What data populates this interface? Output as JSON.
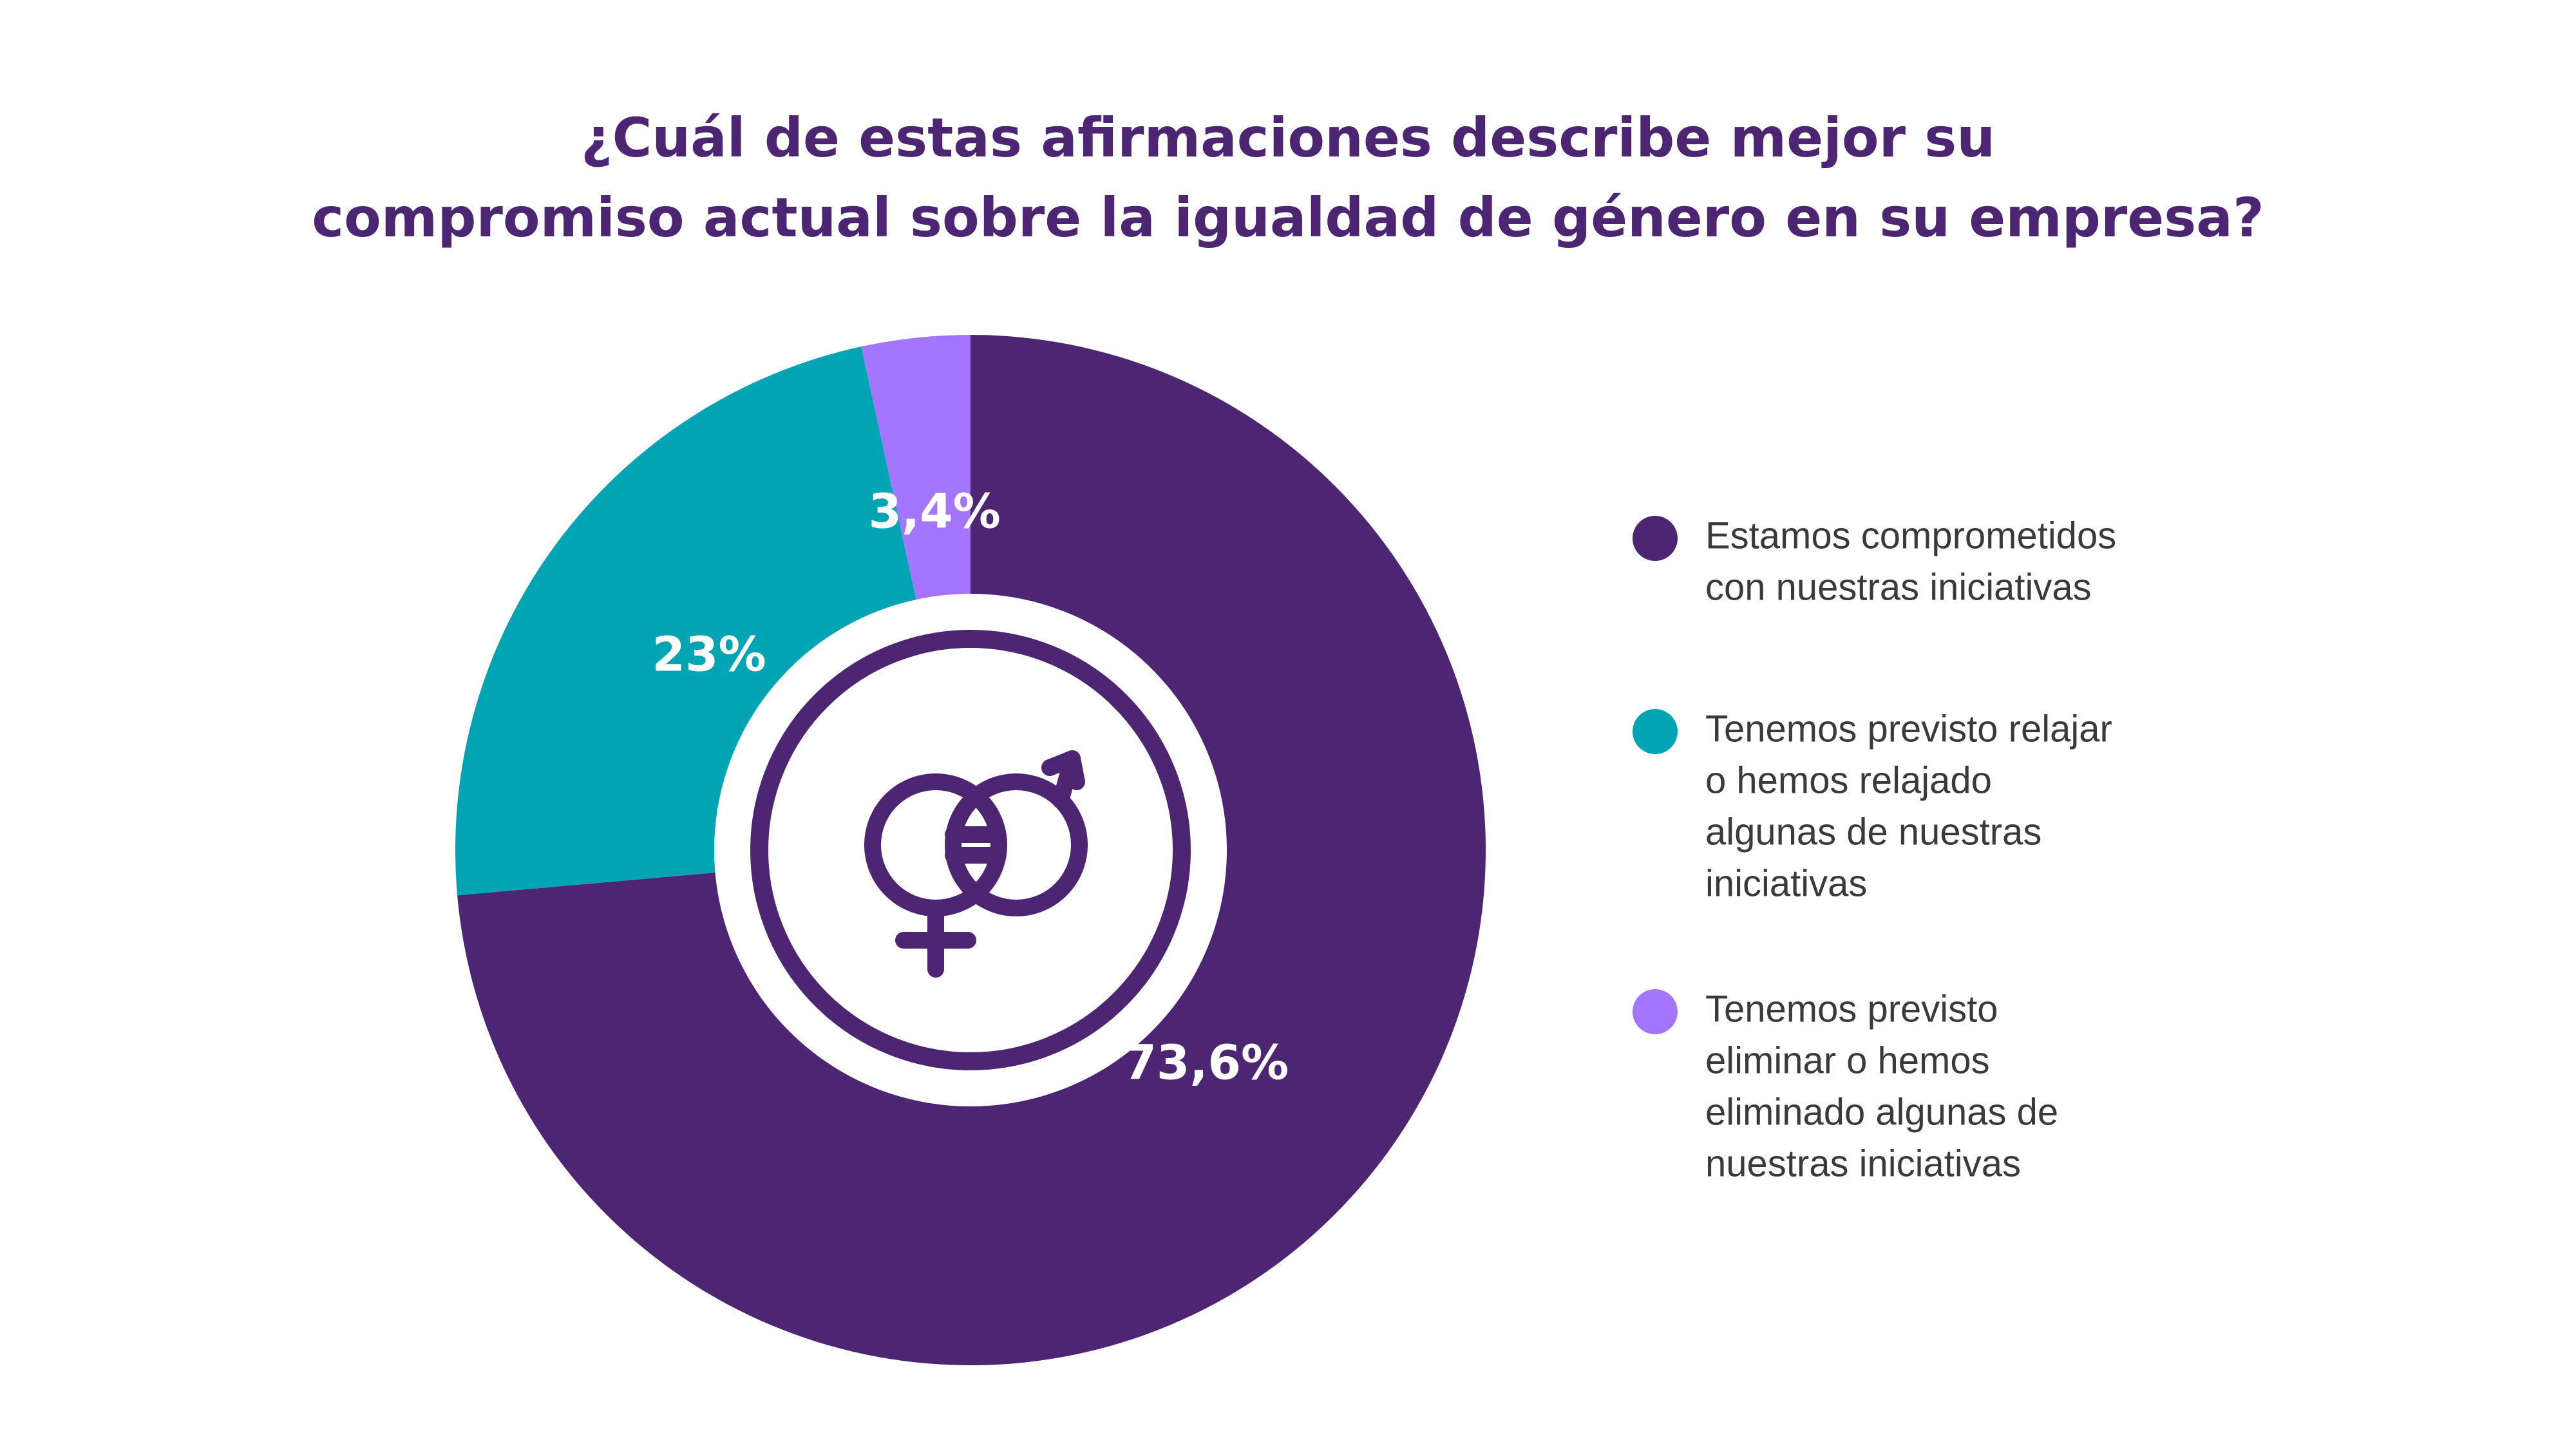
{
  "chart_data": {
    "type": "pie",
    "variant": "donut",
    "title": "¿Cuál de estas afirmaciones describe mejor su compromiso actual sobre la igualdad de género en su empresa?",
    "title_lines": [
      "¿Cuál de estas afirmaciones describe mejor su",
      "compromiso actual sobre la igualdad de género en su empresa?"
    ],
    "legend_position": "right",
    "center_icon": "gender-equality-icon",
    "slices": [
      {
        "label": "Estamos comprometidos con nuestras iniciativas",
        "legend_lines": [
          "Estamos comprometidos",
          "con nuestras iniciativas"
        ],
        "value": 73.6,
        "display": "73,6%",
        "color": "#4c2672"
      },
      {
        "label": "Tenemos previsto relajar o hemos relajado algunas de nuestras iniciativas",
        "legend_lines": [
          "Tenemos previsto relajar",
          "o hemos relajado",
          "algunas de nuestras",
          "iniciativas"
        ],
        "value": 23,
        "display": "23%",
        "color": "#00a4b3"
      },
      {
        "label": "Tenemos previsto eliminar o hemos eliminado algunas de nuestras iniciativas",
        "legend_lines": [
          "Tenemos previsto",
          "eliminar o hemos",
          "eliminado algunas de",
          "nuestras iniciativas"
        ],
        "value": 3.4,
        "display": "3,4%",
        "color": "#a475ff"
      }
    ]
  }
}
